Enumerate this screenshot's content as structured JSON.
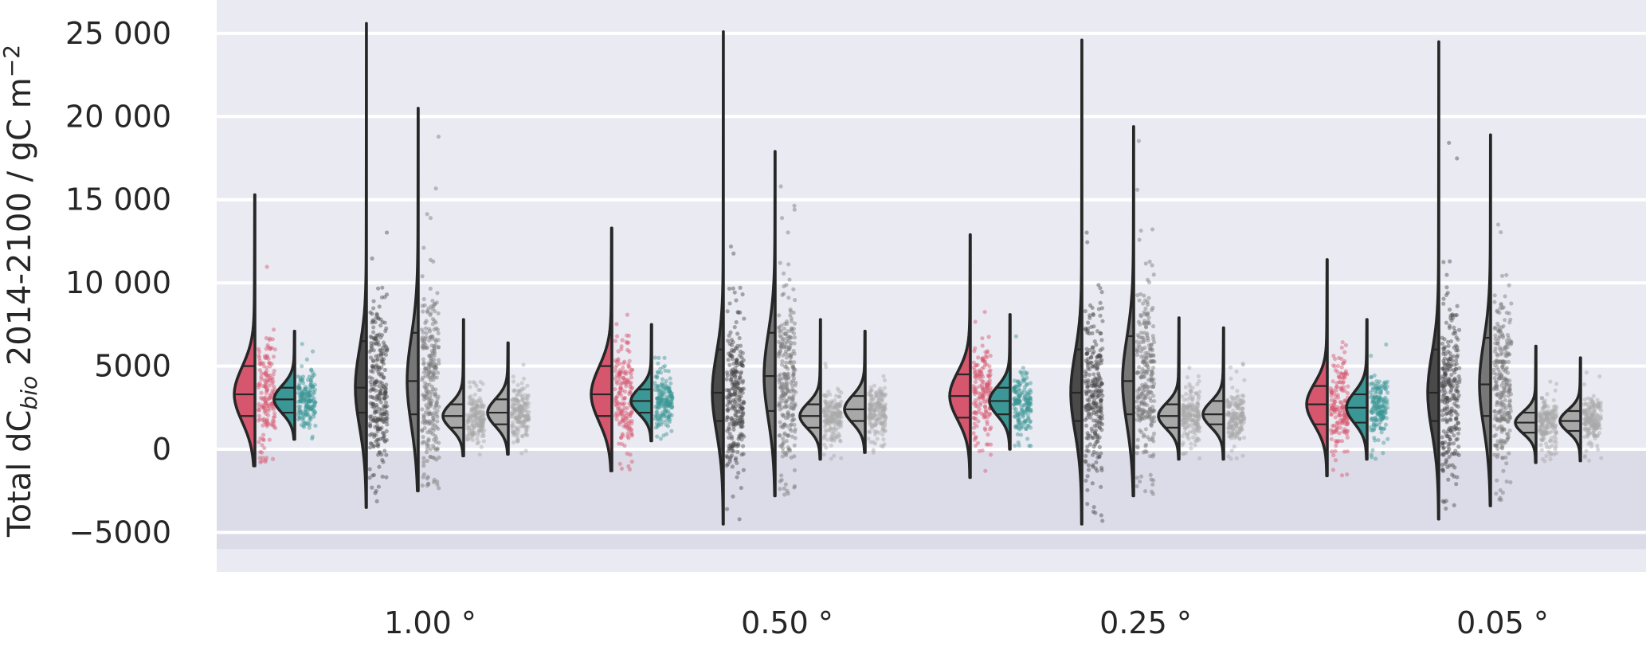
{
  "chart_data": {
    "type": "violin",
    "ylabel": "Total dC_bio 2014-2100 / gC m^-2",
    "ylabel_parts": {
      "pre": "Total dC",
      "sub": "bio",
      "mid": " 2014-2100 / gC m",
      "sup": "−2"
    },
    "ylim": [
      -7500,
      27000
    ],
    "yticks": [
      -5000,
      0,
      5000,
      10000,
      15000,
      20000,
      25000
    ],
    "ytick_labels": [
      "−5000",
      "0",
      "5000",
      "10 000",
      "15 000",
      "20 000",
      "25 000"
    ],
    "categories": [
      "1.00 °",
      "0.50 °",
      "0.25 °",
      "0.05 °"
    ],
    "grid": true,
    "negative_band": [
      -6000,
      0
    ],
    "colors": {
      "background": "#eaeaf2",
      "band": "#dcdbe8",
      "grid": "#ffffff",
      "red": "#d6576d",
      "teal": "#3a9795",
      "dark": "#4a4a4a",
      "mid": "#777777",
      "light": "#a8a8a8",
      "outline": "#262626"
    },
    "series": [
      {
        "color_key": "red",
        "min": [
          -1000,
          -1300,
          -1700,
          -1600
        ],
        "max": [
          15300,
          13300,
          12900,
          11400
        ],
        "q1": [
          2000,
          2000,
          1900,
          1500
        ],
        "median": [
          3300,
          3300,
          3200,
          2700
        ],
        "q3": [
          5000,
          5000,
          4500,
          3800
        ]
      },
      {
        "color_key": "teal",
        "min": [
          600,
          500,
          0,
          -600
        ],
        "max": [
          7100,
          7500,
          8100,
          7800
        ],
        "q1": [
          2200,
          2200,
          2100,
          1600
        ],
        "median": [
          3000,
          2900,
          2900,
          2500
        ],
        "q3": [
          3700,
          3600,
          3700,
          3300
        ]
      },
      {
        "color_key": "dark",
        "min": [
          -3500,
          -4500,
          -4500,
          -4200
        ],
        "max": [
          25600,
          25100,
          24600,
          24500
        ],
        "q1": [
          2200,
          1700,
          1700,
          1700
        ],
        "median": [
          3700,
          3400,
          3400,
          3400
        ],
        "q3": [
          6500,
          6000,
          6000,
          6000
        ]
      },
      {
        "color_key": "mid",
        "min": [
          -2500,
          -2800,
          -2800,
          -3400
        ],
        "max": [
          20500,
          17900,
          19400,
          18900
        ],
        "q1": [
          2100,
          2300,
          2100,
          2000
        ],
        "median": [
          4100,
          4400,
          4100,
          3900
        ],
        "q3": [
          7000,
          7000,
          6800,
          6700
        ]
      },
      {
        "color_key": "light",
        "min": [
          -400,
          -600,
          -600,
          -800
        ],
        "max": [
          7800,
          7800,
          7900,
          6200
        ],
        "q1": [
          1300,
          1300,
          1300,
          1000
        ],
        "median": [
          2000,
          2000,
          2000,
          1600
        ],
        "q3": [
          2700,
          2700,
          2700,
          2200
        ]
      },
      {
        "color_key": "light",
        "min": [
          -300,
          -200,
          -600,
          -700
        ],
        "max": [
          6400,
          7100,
          7300,
          5500
        ],
        "q1": [
          1500,
          1700,
          1500,
          1100
        ],
        "median": [
          2200,
          2400,
          2100,
          1700
        ],
        "q3": [
          3000,
          3200,
          2900,
          2300
        ]
      }
    ]
  }
}
